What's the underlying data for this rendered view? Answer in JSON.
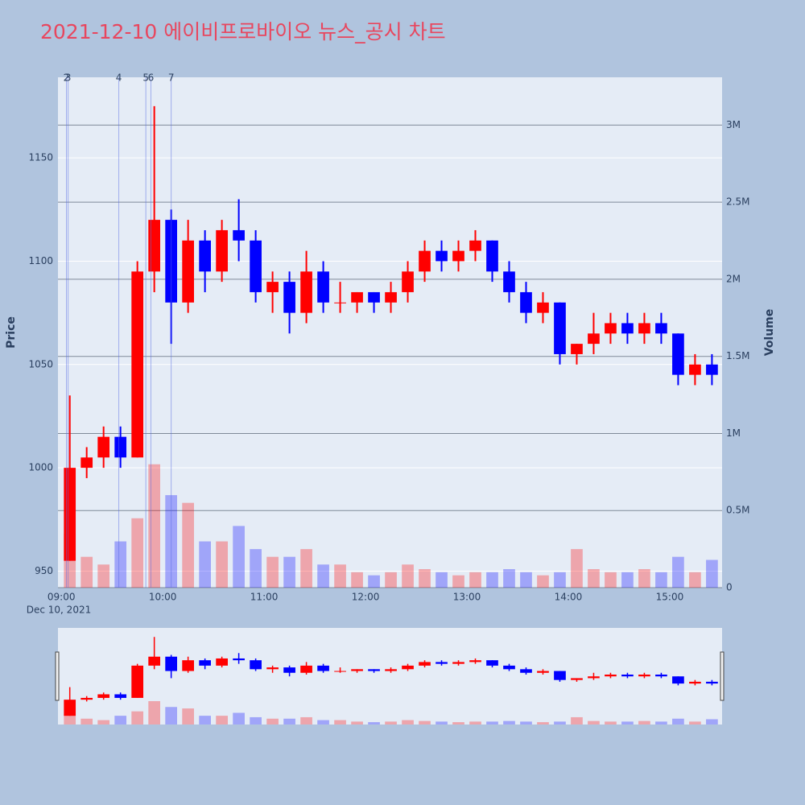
{
  "chart_data": {
    "type": "candlestick",
    "title": "2021-12-10 에이비프로바이오 뉴스_공시 차트",
    "ylabel": "Price",
    "y2label": "Volume",
    "x": [
      "09:00",
      "09:10",
      "09:20",
      "09:30",
      "09:40",
      "09:50",
      "10:00",
      "10:10",
      "10:20",
      "10:30",
      "10:40",
      "10:50",
      "11:00",
      "11:10",
      "11:20",
      "11:30",
      "11:40",
      "11:50",
      "12:00",
      "12:10",
      "12:20",
      "12:30",
      "12:40",
      "12:50",
      "13:00",
      "13:10",
      "13:20",
      "13:30",
      "13:40",
      "13:50",
      "14:00",
      "14:10",
      "14:20",
      "14:30",
      "14:40",
      "14:50",
      "15:00",
      "15:10",
      "15:20"
    ],
    "open": [
      955,
      1000,
      1005,
      1015,
      1005,
      1095,
      1120,
      1080,
      1110,
      1095,
      1115,
      1110,
      1085,
      1090,
      1075,
      1095,
      1080,
      1080,
      1085,
      1080,
      1085,
      1095,
      1105,
      1100,
      1105,
      1110,
      1095,
      1085,
      1075,
      1080,
      1055,
      1060,
      1065,
      1070,
      1065,
      1070,
      1065,
      1045,
      1050
    ],
    "high": [
      1035,
      1010,
      1020,
      1020,
      1100,
      1175,
      1125,
      1120,
      1115,
      1120,
      1130,
      1115,
      1095,
      1095,
      1105,
      1100,
      1090,
      1085,
      1085,
      1090,
      1100,
      1110,
      1110,
      1110,
      1115,
      1110,
      1100,
      1090,
      1085,
      1080,
      1060,
      1075,
      1075,
      1075,
      1075,
      1075,
      1065,
      1055,
      1055
    ],
    "low": [
      955,
      995,
      1000,
      1000,
      1005,
      1085,
      1060,
      1075,
      1085,
      1090,
      1100,
      1080,
      1075,
      1065,
      1070,
      1075,
      1075,
      1075,
      1075,
      1075,
      1080,
      1090,
      1095,
      1095,
      1100,
      1090,
      1080,
      1070,
      1070,
      1050,
      1050,
      1055,
      1060,
      1060,
      1060,
      1060,
      1040,
      1040,
      1040
    ],
    "close": [
      1000,
      1005,
      1015,
      1005,
      1095,
      1120,
      1080,
      1110,
      1095,
      1115,
      1110,
      1085,
      1090,
      1075,
      1095,
      1080,
      1080,
      1085,
      1080,
      1085,
      1095,
      1105,
      1100,
      1105,
      1110,
      1095,
      1085,
      1075,
      1080,
      1055,
      1060,
      1065,
      1070,
      1065,
      1070,
      1065,
      1045,
      1050,
      1045
    ],
    "volume": [
      350000,
      200000,
      150000,
      300000,
      450000,
      800000,
      600000,
      550000,
      300000,
      300000,
      400000,
      250000,
      200000,
      200000,
      250000,
      150000,
      150000,
      100000,
      80000,
      100000,
      150000,
      120000,
      100000,
      80000,
      100000,
      100000,
      120000,
      100000,
      80000,
      100000,
      250000,
      120000,
      100000,
      100000,
      120000,
      100000,
      200000,
      100000,
      180000
    ],
    "increasing_color": "#ff0000",
    "decreasing_color": "#0000ff",
    "xlim": [
      "08:58",
      "15:31"
    ],
    "xticks": [
      "09:00",
      "10:00",
      "11:00",
      "12:00",
      "13:00",
      "14:00",
      "15:00"
    ],
    "x_date_label": "Dec 10, 2021",
    "ylim": [
      942,
      1189
    ],
    "yticks": [
      950,
      1000,
      1050,
      1100,
      1150
    ],
    "y2lim": [
      0,
      3310000
    ],
    "y2ticks": [
      0,
      {
        "value": 500000,
        "label": "0.5M"
      },
      {
        "value": 1000000,
        "label": "1M"
      },
      {
        "value": 1500000,
        "label": "1.5M"
      },
      {
        "value": 2000000,
        "label": "2M"
      },
      {
        "value": 2500000,
        "label": "2.5M"
      },
      {
        "value": 3000000,
        "label": "3M"
      }
    ],
    "news": [
      {
        "label": "2",
        "x": "09:03"
      },
      {
        "label": "3",
        "x": "09:04"
      },
      {
        "label": "4",
        "x": "09:34"
      },
      {
        "label": "5",
        "x": "09:50"
      },
      {
        "label": "6",
        "x": "09:53"
      },
      {
        "label": "7",
        "x": "10:05"
      }
    ]
  }
}
